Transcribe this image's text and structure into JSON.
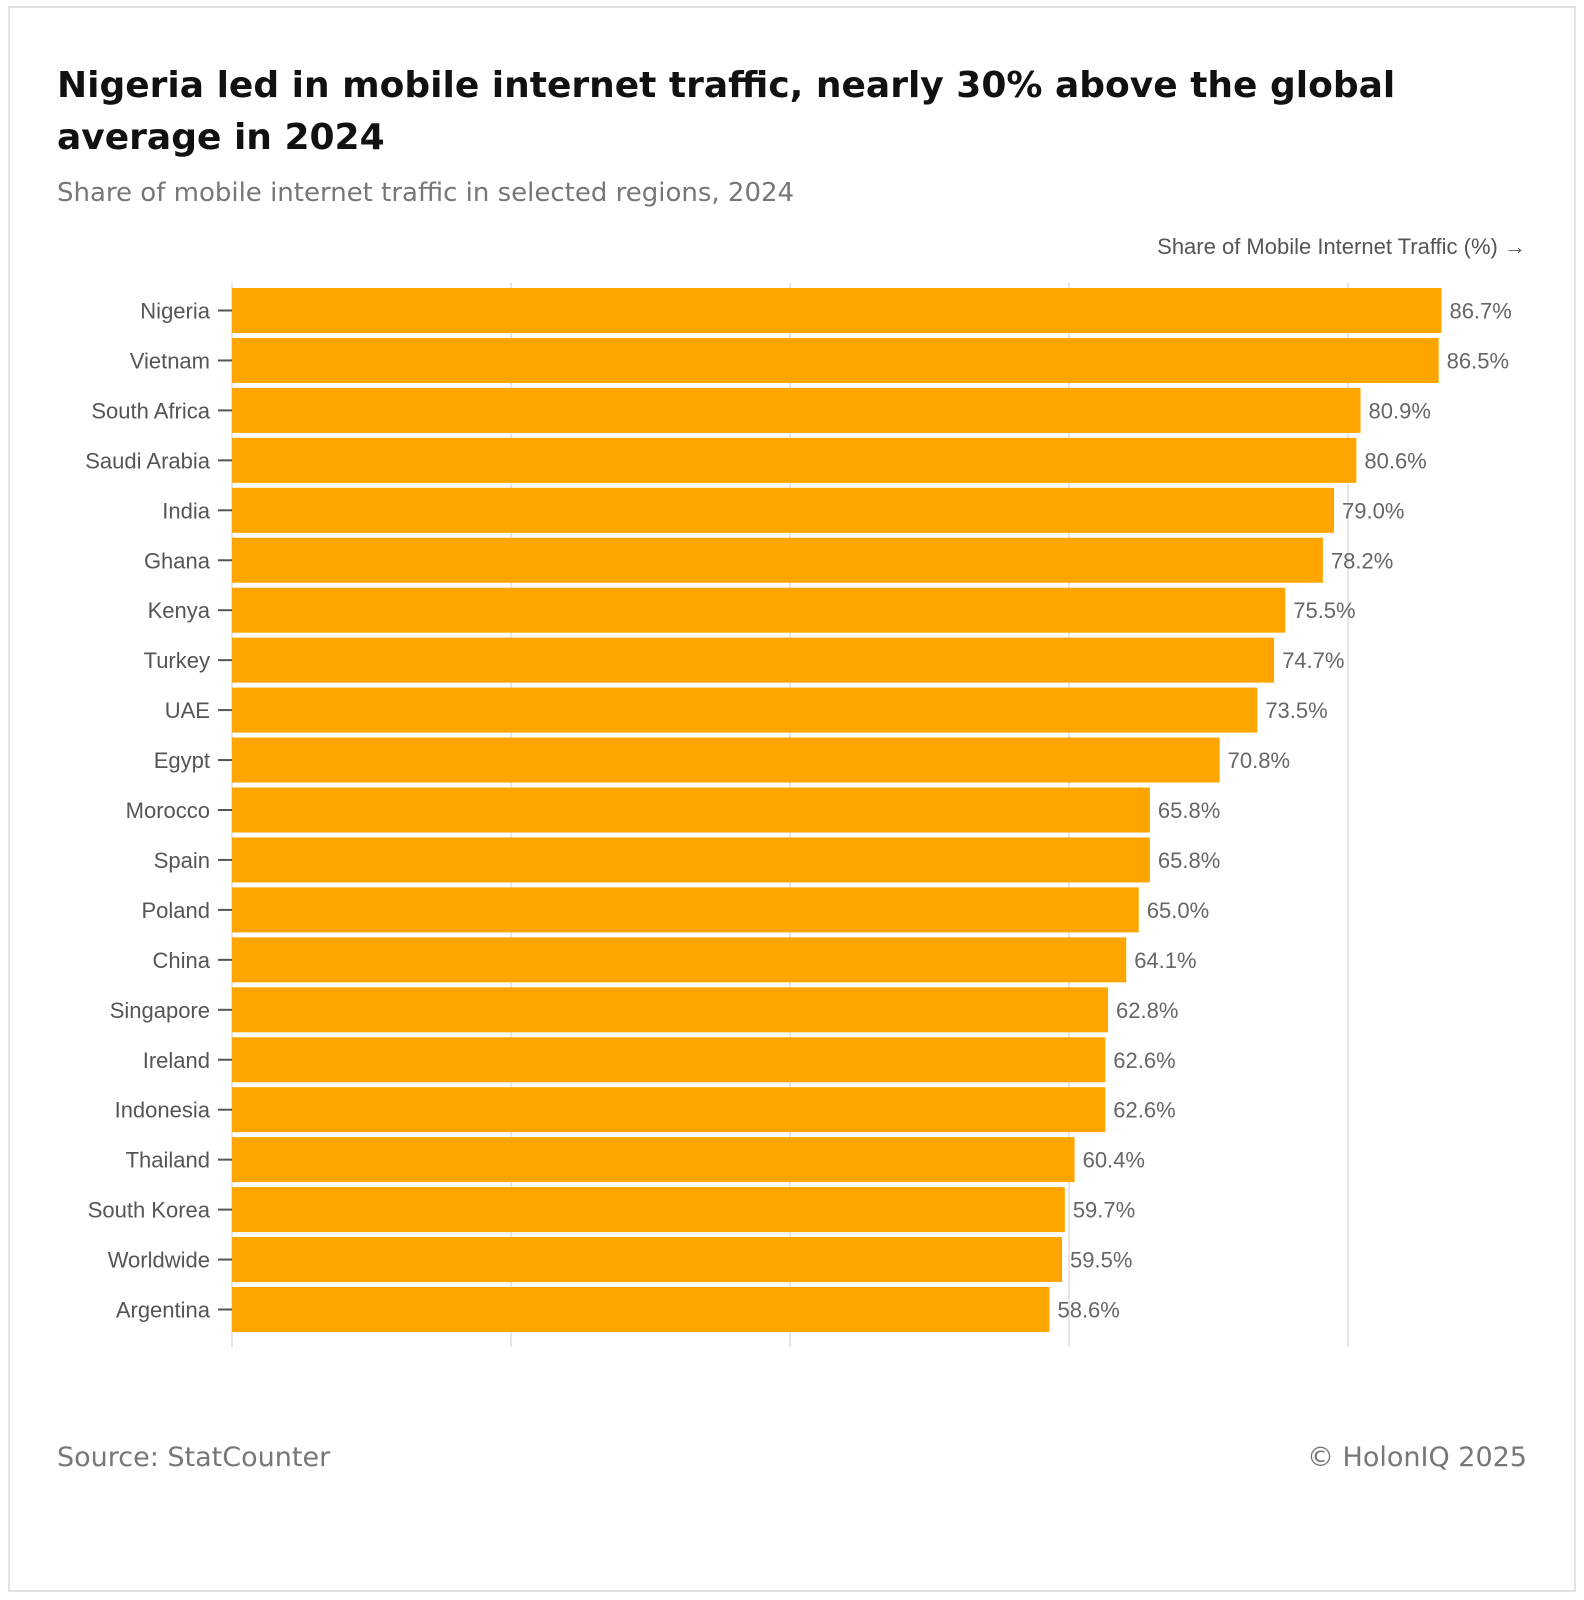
{
  "colors": {
    "bar": "#FFA500",
    "grid": "#e6e6e6",
    "label": "#555555",
    "value": "#666666",
    "title": "#111111",
    "muted": "#777777"
  },
  "footer": {
    "source": "Source: StatCounter",
    "copyright": "© HolonIQ 2025"
  },
  "chart_data": {
    "type": "bar",
    "orientation": "horizontal",
    "title": "Nigeria led in mobile internet traffic, nearly 30% above the global average in 2024",
    "subtitle": "Share of mobile internet traffic in selected regions, 2024",
    "xlabel": "Share of Mobile Internet Traffic (%) →",
    "ylabel": "",
    "xlim": [
      0,
      100
    ],
    "grid": true,
    "categories": [
      "Nigeria",
      "Vietnam",
      "South Africa",
      "Saudi Arabia",
      "India",
      "Ghana",
      "Kenya",
      "Turkey",
      "UAE",
      "Egypt",
      "Morocco",
      "Spain",
      "Poland",
      "China",
      "Singapore",
      "Ireland",
      "Indonesia",
      "Thailand",
      "South Korea",
      "Worldwide",
      "Argentina"
    ],
    "values": [
      86.7,
      86.5,
      80.9,
      80.6,
      79.0,
      78.2,
      75.5,
      74.7,
      73.5,
      70.8,
      65.8,
      65.8,
      65.0,
      64.1,
      62.8,
      62.6,
      62.6,
      60.4,
      59.7,
      59.5,
      58.6
    ],
    "value_labels": [
      "86.7%",
      "86.5%",
      "80.9%",
      "80.6%",
      "79.0%",
      "78.2%",
      "75.5%",
      "74.7%",
      "73.5%",
      "70.8%",
      "65.8%",
      "65.8%",
      "65.0%",
      "64.1%",
      "62.8%",
      "62.6%",
      "62.6%",
      "60.4%",
      "59.7%",
      "59.5%",
      "58.6%"
    ]
  }
}
